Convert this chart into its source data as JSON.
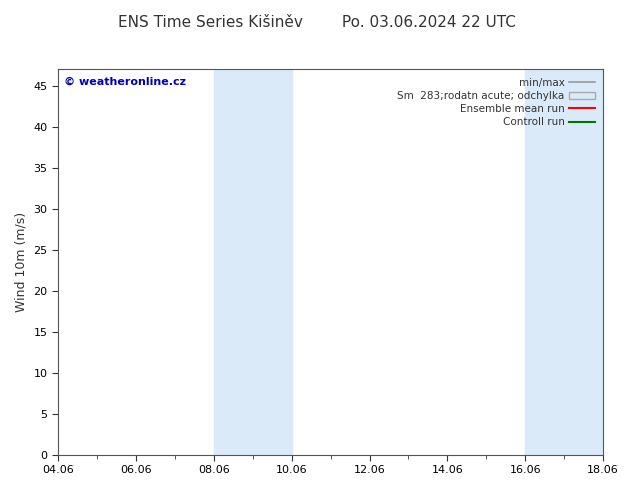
{
  "title": "ENS Time Series Kišiněv        Po. 03.06.2024 22 UTC",
  "ylabel": "Wind 10m (m/s)",
  "ylim": [
    0,
    47
  ],
  "yticks": [
    0,
    5,
    10,
    15,
    20,
    25,
    30,
    35,
    40,
    45
  ],
  "xtick_labels": [
    "04.06",
    "06.06",
    "08.06",
    "10.06",
    "12.06",
    "14.06",
    "16.06",
    "18.06"
  ],
  "xtick_positions": [
    0,
    2,
    4,
    6,
    8,
    10,
    12,
    14
  ],
  "xlim": [
    0,
    14
  ],
  "bg_color": "#ffffff",
  "plot_bg_color": "#ffffff",
  "shaded_bands": [
    {
      "x_start": 4.0,
      "x_end": 6.0,
      "color": "#daeaf8"
    },
    {
      "x_start": 12.0,
      "x_end": 14.0,
      "color": "#daeaf8"
    }
  ],
  "watermark_text": "© weatheronline.cz",
  "watermark_color": "#0000bb",
  "legend_entries": [
    {
      "label": "min/max",
      "type": "line",
      "color": "#999999",
      "lw": 1.2
    },
    {
      "label": "Sm  283;rodatn acute; odchylka",
      "type": "box",
      "facecolor": "#daeaf8",
      "edgecolor": "#aaaaaa"
    },
    {
      "label": "Ensemble mean run",
      "type": "line",
      "color": "#ff0000",
      "lw": 1.5
    },
    {
      "label": "Controll run",
      "type": "line",
      "color": "#007700",
      "lw": 1.5
    }
  ],
  "spine_color": "#555555",
  "tick_color": "#333333",
  "font_color": "#333333",
  "title_fontsize": 11,
  "axis_label_fontsize": 9,
  "tick_fontsize": 8,
  "legend_fontsize": 7.5
}
